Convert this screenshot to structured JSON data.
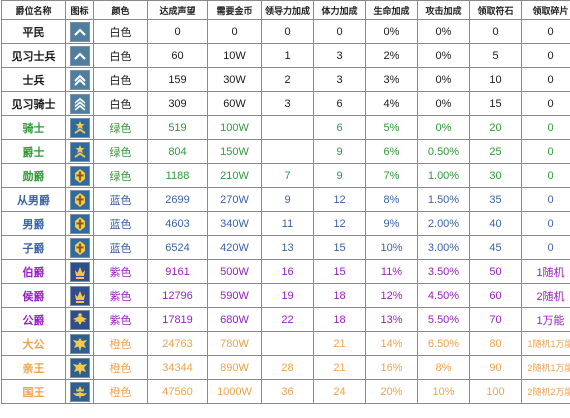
{
  "headers": [
    "爵位名称",
    "图标",
    "颜色",
    "达成声望",
    "需要金币",
    "领导力加成",
    "体力加成",
    "生命加成",
    "攻击加成",
    "领取符石",
    "领取碎片"
  ],
  "tiers": {
    "white": {
      "text_color": "#1a1a1a",
      "icon_bg": "#4f7e9e",
      "icon_fg": "#ffffff"
    },
    "green": {
      "text_color": "#2e9a36",
      "icon_bg": "#2f6aa0",
      "icon_fg": "#f2c94c"
    },
    "blue": {
      "text_color": "#3a63a8",
      "icon_bg": "#2f6aa0",
      "icon_fg": "#f2c94c"
    },
    "purple": {
      "text_color": "#9a1fc0",
      "icon_bg": "#314e8c",
      "icon_fg": "#f2c94c"
    },
    "orange": {
      "text_color": "#f0a24a",
      "icon_bg": "#2f5f8f",
      "icon_fg": "#f2c94c"
    }
  },
  "rows": [
    {
      "name": "平民",
      "icon": "chevron-rank-icon",
      "color": "白色",
      "tier": "white",
      "prestige": "0",
      "gold": "0",
      "leadership": "0",
      "stamina": "0",
      "life": "0%",
      "attack": "0%",
      "runes": "0",
      "fragments": "0"
    },
    {
      "name": "见习士兵",
      "icon": "chevron-rank-icon",
      "color": "白色",
      "tier": "white",
      "prestige": "60",
      "gold": "10W",
      "leadership": "1",
      "stamina": "3",
      "life": "2%",
      "attack": "0%",
      "runes": "5",
      "fragments": "0"
    },
    {
      "name": "士兵",
      "icon": "double-chevron-rank-icon",
      "color": "白色",
      "tier": "white",
      "prestige": "159",
      "gold": "30W",
      "leadership": "2",
      "stamina": "3",
      "life": "3%",
      "attack": "0%",
      "runes": "10",
      "fragments": "0"
    },
    {
      "name": "见习骑士",
      "icon": "triple-chevron-rank-icon",
      "color": "白色",
      "tier": "white",
      "prestige": "309",
      "gold": "60W",
      "leadership": "3",
      "stamina": "6",
      "life": "4%",
      "attack": "0%",
      "runes": "15",
      "fragments": "0"
    },
    {
      "name": "骑士",
      "icon": "star-chevron-rank-icon",
      "color": "绿色",
      "tier": "green",
      "prestige": "519",
      "gold": "100W",
      "leadership": "",
      "stamina": "6",
      "life": "5%",
      "attack": "0%",
      "runes": "20",
      "fragments": "0"
    },
    {
      "name": "爵士",
      "icon": "star-chevron-rank-icon",
      "color": "绿色",
      "tier": "green",
      "prestige": "804",
      "gold": "150W",
      "leadership": "",
      "stamina": "9",
      "life": "6%",
      "attack": "0.50%",
      "runes": "25",
      "fragments": "0"
    },
    {
      "name": "勋爵",
      "icon": "cross-badge-icon",
      "color": "绿色",
      "tier": "green",
      "prestige": "1188",
      "gold": "210W",
      "leadership": "7",
      "stamina": "9",
      "life": "7%",
      "attack": "1.00%",
      "runes": "30",
      "fragments": "0"
    },
    {
      "name": "从男爵",
      "icon": "cross-badge-icon",
      "color": "蓝色",
      "tier": "blue",
      "prestige": "2699",
      "gold": "270W",
      "leadership": "9",
      "stamina": "12",
      "life": "8%",
      "attack": "1.50%",
      "runes": "35",
      "fragments": "0"
    },
    {
      "name": "男爵",
      "icon": "cross-badge-icon",
      "color": "蓝色",
      "tier": "blue",
      "prestige": "4603",
      "gold": "340W",
      "leadership": "11",
      "stamina": "12",
      "life": "9%",
      "attack": "2.00%",
      "runes": "40",
      "fragments": "0"
    },
    {
      "name": "子爵",
      "icon": "cross-badge-icon",
      "color": "蓝色",
      "tier": "blue",
      "prestige": "6524",
      "gold": "420W",
      "leadership": "13",
      "stamina": "15",
      "life": "10%",
      "attack": "3.00%",
      "runes": "45",
      "fragments": "0"
    },
    {
      "name": "伯爵",
      "icon": "crown-badge-icon",
      "color": "紫色",
      "tier": "purple",
      "prestige": "9161",
      "gold": "500W",
      "leadership": "16",
      "stamina": "15",
      "life": "11%",
      "attack": "3.50%",
      "runes": "50",
      "fragments": "1随机"
    },
    {
      "name": "侯爵",
      "icon": "crown-badge-icon",
      "color": "紫色",
      "tier": "purple",
      "prestige": "12796",
      "gold": "590W",
      "leadership": "19",
      "stamina": "18",
      "life": "12%",
      "attack": "4.50%",
      "runes": "60",
      "fragments": "2随机"
    },
    {
      "name": "公爵",
      "icon": "wings-badge-icon",
      "color": "紫色",
      "tier": "purple",
      "prestige": "17819",
      "gold": "680W",
      "leadership": "22",
      "stamina": "18",
      "life": "13%",
      "attack": "5.50%",
      "runes": "70",
      "fragments": "1万能"
    },
    {
      "name": "大公",
      "icon": "eagle-badge-icon",
      "color": "橙色",
      "tier": "orange",
      "prestige": "24763",
      "gold": "780W",
      "leadership": "",
      "stamina": "21",
      "life": "14%",
      "attack": "6.50%",
      "runes": "80",
      "fragments": "1随机1万能"
    },
    {
      "name": "亲王",
      "icon": "eagle-badge-icon",
      "color": "橙色",
      "tier": "orange",
      "prestige": "34344",
      "gold": "890W",
      "leadership": "28",
      "stamina": "21",
      "life": "16%",
      "attack": "8%",
      "runes": "90",
      "fragments": "2随机1万能"
    },
    {
      "name": "国王",
      "icon": "crown-eagle-badge-icon",
      "color": "橙色",
      "tier": "orange",
      "prestige": "47560",
      "gold": "1000W",
      "leadership": "36",
      "stamina": "24",
      "life": "20%",
      "attack": "10%",
      "runes": "100",
      "fragments": "2随机2万能"
    }
  ]
}
